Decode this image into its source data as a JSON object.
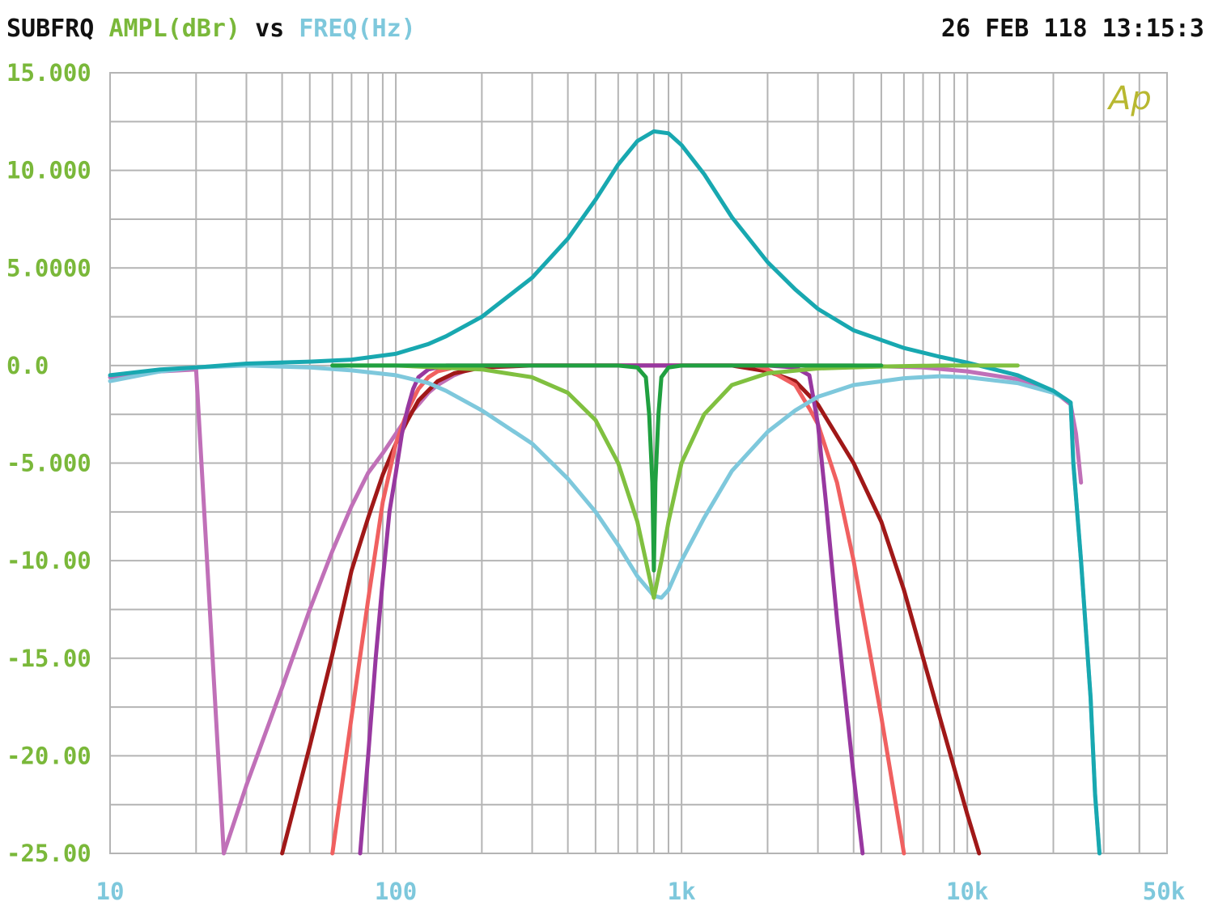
{
  "header": {
    "measurement": "SUBFRQ",
    "y_quantity": "AMPL(dBr)",
    "vs": "vs",
    "x_quantity": "FREQ(Hz)",
    "timestamp": "26 FEB 118 13:15:3"
  },
  "logo_text": "Ap",
  "colors": {
    "grid": "#b4b4b4",
    "y_labels": "#7ab83a",
    "x_labels": "#7ec8dc",
    "header_text": "#111111"
  },
  "chart_data": {
    "type": "line",
    "x_scale": "log",
    "xlim": [
      10,
      50000
    ],
    "ylim": [
      -25,
      15
    ],
    "grid": true,
    "xlabel": "FREQ(Hz)",
    "ylabel": "AMPL(dBr)",
    "x_ticks": [
      {
        "value": 10,
        "label": "10"
      },
      {
        "value": 100,
        "label": "100"
      },
      {
        "value": 1000,
        "label": "1k"
      },
      {
        "value": 10000,
        "label": "10k"
      },
      {
        "value": 50000,
        "label": "50k"
      }
    ],
    "y_ticks": [
      {
        "value": 15,
        "label": "15.000"
      },
      {
        "value": 10,
        "label": "10.000"
      },
      {
        "value": 5,
        "label": "5.0000"
      },
      {
        "value": 0,
        "label": "0.0"
      },
      {
        "value": -5,
        "label": "-5.000"
      },
      {
        "value": -10,
        "label": "-10.00"
      },
      {
        "value": -15,
        "label": "-15.00"
      },
      {
        "value": -20,
        "label": "-20.00"
      },
      {
        "value": -25,
        "label": "-25.00"
      }
    ],
    "series": [
      {
        "color": "#c070b8",
        "x": [
          10,
          15,
          20,
          25,
          30,
          40,
          50,
          60,
          70,
          80,
          90,
          100,
          110,
          120,
          130,
          140,
          160,
          180,
          200,
          250,
          300,
          400,
          600,
          1000,
          2000,
          4000,
          7000,
          10000,
          15000,
          20000,
          23000,
          24000,
          25000
        ],
        "y": [
          -0.6,
          -0.3,
          -0.2,
          -25,
          -21.5,
          -16.5,
          -12.5,
          -9.5,
          -7.2,
          -5.5,
          -4.5,
          -3.5,
          -2.6,
          -2,
          -1.4,
          -1,
          -0.5,
          -0.2,
          -0.1,
          0,
          0,
          0,
          0,
          0,
          0,
          0,
          -0.1,
          -0.3,
          -0.7,
          -1.3,
          -2,
          -3.5,
          -6
        ]
      },
      {
        "color": "#a01818",
        "x": [
          40,
          50,
          60,
          70,
          80,
          90,
          100,
          110,
          120,
          140,
          160,
          200,
          300,
          600,
          1000,
          1500,
          2000,
          2500,
          3000,
          4000,
          5000,
          6000,
          8000,
          10000,
          11000
        ],
        "y": [
          -25,
          -19.5,
          -14.8,
          -10.5,
          -7.8,
          -5.6,
          -4,
          -2.8,
          -1.8,
          -0.8,
          -0.4,
          -0.1,
          0,
          0,
          0,
          0,
          -0.3,
          -0.8,
          -2,
          -5,
          -8,
          -11.5,
          -18,
          -23,
          -25
        ]
      },
      {
        "color": "#f06060",
        "x": [
          60,
          70,
          80,
          90,
          100,
          110,
          120,
          130,
          140,
          160,
          200,
          300,
          600,
          1000,
          1800,
          2000,
          2500,
          2800,
          3000,
          3500,
          4000,
          5000,
          6000
        ],
        "y": [
          -25,
          -18,
          -12,
          -7,
          -4,
          -2.3,
          -1.2,
          -0.6,
          -0.3,
          -0.1,
          0,
          0,
          0,
          0,
          0,
          -0.2,
          -1,
          -2.2,
          -3,
          -6,
          -10,
          -18,
          -25
        ]
      },
      {
        "color": "#9838a0",
        "x": [
          75,
          80,
          85,
          90,
          95,
          100,
          105,
          110,
          115,
          120,
          130,
          140,
          150,
          200,
          500,
          800,
          1000,
          2000,
          2500,
          2800,
          3000,
          3200,
          3500,
          4000,
          4300
        ],
        "y": [
          -25,
          -20,
          -15,
          -11,
          -7.5,
          -5.5,
          -3.5,
          -2.2,
          -1.2,
          -0.6,
          -0.2,
          -0.1,
          0,
          0,
          0,
          0,
          0,
          0,
          -0.1,
          -0.5,
          -3,
          -7,
          -13,
          -21,
          -25
        ]
      },
      {
        "color": "#7ec8dc",
        "x": [
          10,
          15,
          20,
          30,
          50,
          70,
          100,
          130,
          150,
          200,
          300,
          400,
          500,
          600,
          700,
          800,
          850,
          900,
          1000,
          1200,
          1500,
          2000,
          2500,
          3000,
          4000,
          6000,
          8000,
          10000,
          15000,
          20000,
          22000,
          23000,
          23500,
          25000,
          27000,
          28000,
          29000
        ],
        "y": [
          -0.8,
          -0.3,
          -0.1,
          0,
          -0.1,
          -0.25,
          -0.5,
          -0.9,
          -1.3,
          -2.3,
          -4,
          -5.8,
          -7.5,
          -9.2,
          -10.8,
          -11.8,
          -11.9,
          -11.5,
          -10,
          -7.8,
          -5.4,
          -3.4,
          -2.3,
          -1.6,
          -1,
          -0.65,
          -0.55,
          -0.6,
          -0.9,
          -1.4,
          -1.7,
          -1.9,
          -5,
          -10,
          -17,
          -22,
          -25
        ]
      },
      {
        "color": "#18a8b0",
        "x": [
          10,
          15,
          20,
          30,
          50,
          70,
          100,
          130,
          150,
          200,
          300,
          400,
          500,
          600,
          700,
          800,
          900,
          1000,
          1200,
          1500,
          2000,
          2500,
          3000,
          4000,
          6000,
          8000,
          10000,
          15000,
          20000,
          22000,
          23000,
          23500,
          25000,
          27000,
          28000,
          29000
        ],
        "y": [
          -0.5,
          -0.2,
          -0.1,
          0.1,
          0.2,
          0.3,
          0.6,
          1.1,
          1.5,
          2.5,
          4.5,
          6.5,
          8.5,
          10.3,
          11.5,
          12,
          11.9,
          11.3,
          9.8,
          7.6,
          5.3,
          3.9,
          2.9,
          1.8,
          0.9,
          0.45,
          0.15,
          -0.5,
          -1.3,
          -1.7,
          -1.9,
          -5,
          -10,
          -17,
          -22,
          -25
        ]
      },
      {
        "color": "#80c040",
        "x": [
          60,
          100,
          200,
          300,
          400,
          500,
          600,
          700,
          750,
          800,
          850,
          900,
          1000,
          1200,
          1500,
          2000,
          3000,
          5000,
          8000,
          10000,
          15000
        ],
        "y": [
          0,
          0,
          -0.2,
          -0.6,
          -1.4,
          -2.8,
          -5,
          -8,
          -10,
          -11.9,
          -10,
          -8,
          -5,
          -2.5,
          -1,
          -0.4,
          -0.15,
          -0.05,
          0,
          0,
          0
        ]
      },
      {
        "color": "#20a040",
        "x": [
          60,
          100,
          300,
          600,
          700,
          750,
          770,
          790,
          800,
          810,
          830,
          850,
          900,
          1000,
          2000,
          5000
        ],
        "y": [
          0,
          0,
          0,
          0,
          -0.1,
          -0.6,
          -2.5,
          -6,
          -10.5,
          -6,
          -2.5,
          -0.6,
          -0.1,
          0,
          0,
          0
        ]
      }
    ]
  }
}
